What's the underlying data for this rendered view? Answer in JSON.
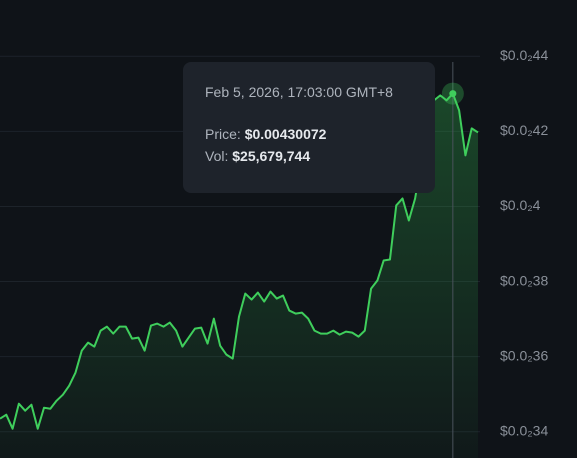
{
  "chart_data": {
    "type": "line",
    "series": [
      {
        "color": "#3fce5c",
        "values": [
          0.0034347,
          0.0034453,
          0.003408,
          0.0034747,
          0.003456,
          0.003472,
          0.003408,
          0.003464,
          0.0034613,
          0.0034827,
          0.0034987,
          0.0035227,
          0.0035573,
          0.003616,
          0.0036373,
          0.0036267,
          0.0036693,
          0.00368,
          0.0036613,
          0.00368,
          0.00368,
          0.003648,
          0.0036507,
          0.003616,
          0.0036827,
          0.003688,
          0.00368,
          0.0036907,
          0.0036693,
          0.0036267,
          0.0036507,
          0.0036747,
          0.0036773,
          0.0036347,
          0.0037013,
          0.0036293,
          0.0036053,
          0.0035947,
          0.0037067,
          0.003768,
          0.003752,
          0.0037707,
          0.0037467,
          0.0037733,
          0.0037547,
          0.0037627,
          0.0037227,
          0.0037147,
          0.0037173,
          0.0037013,
          0.0036693,
          0.0036613,
          0.0036613,
          0.0036693,
          0.0036587,
          0.0036667,
          0.003664,
          0.0036533,
          0.0036693,
          0.0037813,
          0.0038027,
          0.003856,
          0.0038587,
          0.0040027,
          0.0040213,
          0.0039627,
          0.0040213,
          0.0041227,
          0.0042027,
          0.0042827,
          0.004296,
          0.0042827,
          0.00430072,
          0.004256,
          0.004136,
          0.004208,
          0.0041973
        ]
      }
    ],
    "ylim": [
      0.00333,
      0.00455
    ],
    "yticks": [
      {
        "value": 0.0034,
        "label": "$0.0₂34"
      },
      {
        "value": 0.0036,
        "label": "$0.0₂36"
      },
      {
        "value": 0.0038,
        "label": "$0.0₂38"
      },
      {
        "value": 0.004,
        "label": "$0.0₂4"
      },
      {
        "value": 0.0042,
        "label": "$0.0₂42"
      },
      {
        "value": 0.0044,
        "label": "$0.0₂44"
      }
    ],
    "grid": true,
    "tooltip": {
      "date": "Feb 5, 2026, 17:03:00 GMT+8",
      "price_label": "Price:",
      "price": "$0.00430072",
      "vol_label": "Vol:",
      "vol": "$25,679,744"
    }
  }
}
